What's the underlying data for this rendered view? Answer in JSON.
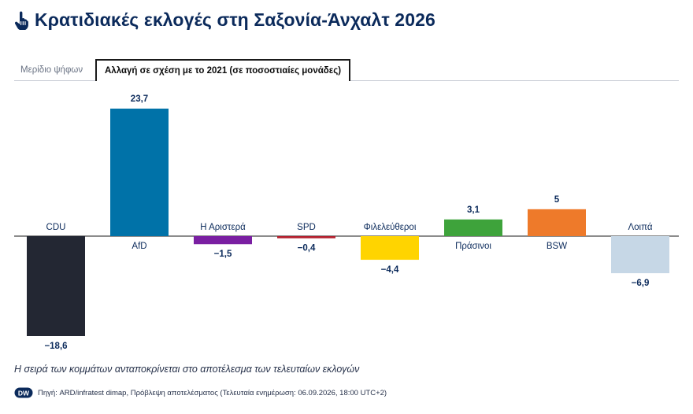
{
  "header": {
    "title": "Κρατιδιακές εκλογές στη Σαξονία-Άνχαλτ 2026",
    "icon": "hand-pointer-icon"
  },
  "tabs": [
    {
      "label": "Μερίδιο ψήφων",
      "active": false
    },
    {
      "label": "Αλλαγή σε σχέση με το 2021 (σε ποσοστιαίες μονάδες)",
      "active": true
    }
  ],
  "chart_data": {
    "type": "bar",
    "categories": [
      "CDU",
      "AfD",
      "Η Αριστερά",
      "SPD",
      "Φιλελεύθεροι",
      "Πράσινοι",
      "BSW",
      "Λοιπά"
    ],
    "values": [
      -18.6,
      23.7,
      -1.5,
      -0.4,
      -4.4,
      3.1,
      5,
      -6.9
    ],
    "value_labels": [
      "−18,6",
      "23,7",
      "−1,5",
      "−0,4",
      "−4,4",
      "3,1",
      "5",
      "−6,9"
    ],
    "colors": [
      "#232733",
      "#0072a8",
      "#7a1fa2",
      "#b3202e",
      "#ffd400",
      "#3ea33b",
      "#ee7a2a",
      "#c6d7e6"
    ],
    "ylim": [
      -18.6,
      23.7
    ],
    "grid": false,
    "zero_line": true
  },
  "note": "Η σειρά των κομμάτων ανταποκρίνεται στο αποτέλεσμα των τελευταίων εκλογών",
  "footer": {
    "logo_text": "DW",
    "source": "Πηγή: ARD/infratest dimap, Πρόβλεψη αποτελέσματος (Τελευταία ενημέρωση: 06.09.2026, 18:00 UTC+2)"
  }
}
